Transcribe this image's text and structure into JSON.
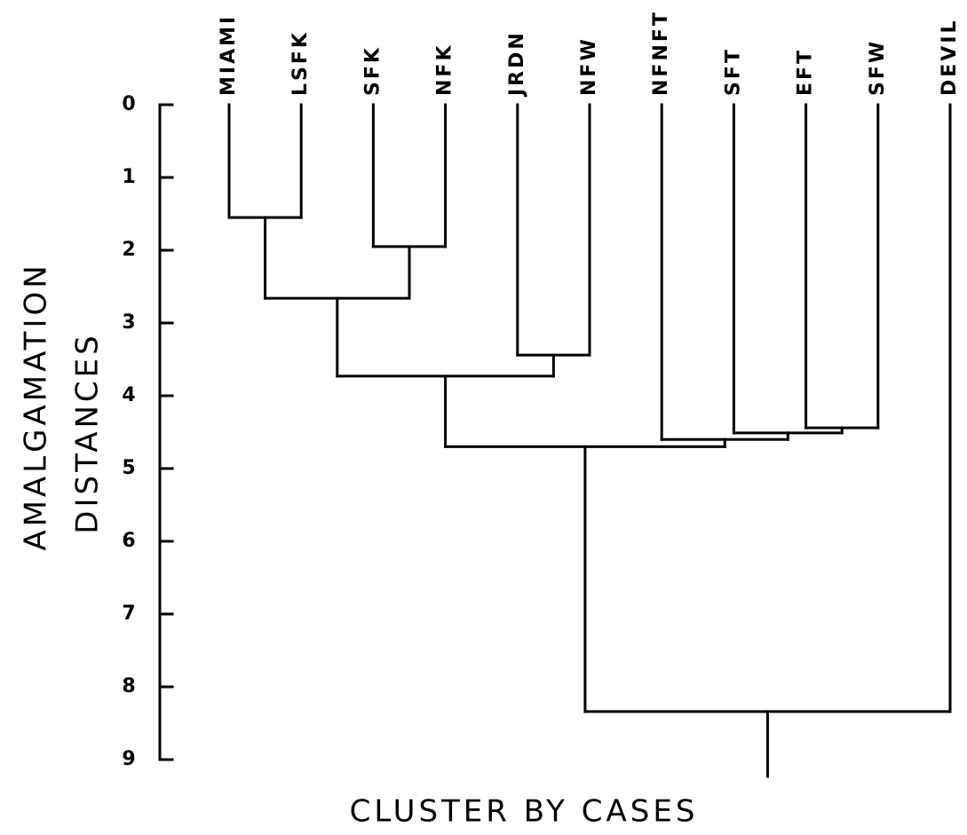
{
  "chart_data": {
    "type": "dendrogram",
    "xlabel": "CLUSTER BY CASES",
    "ylabel": [
      "AMALGAMATION",
      "DISTANCES"
    ],
    "ylim": [
      0,
      9
    ],
    "yticks": [
      0,
      1,
      2,
      3,
      4,
      5,
      6,
      7,
      8,
      9
    ],
    "invert_y": true,
    "color": "#000000",
    "tree": {
      "height": 8.34,
      "children": [
        {
          "height": 4.7,
          "children": [
            {
              "height": 3.73,
              "children": [
                {
                  "height": 2.66,
                  "children": [
                    {
                      "height": 1.55,
                      "children": [
                        {
                          "label": "MIAMI"
                        },
                        {
                          "label": "LSFK"
                        }
                      ]
                    },
                    {
                      "height": 1.95,
                      "children": [
                        {
                          "label": "SFK"
                        },
                        {
                          "label": "NFK"
                        }
                      ]
                    }
                  ]
                },
                {
                  "height": 3.44,
                  "children": [
                    {
                      "label": "JRDN"
                    },
                    {
                      "label": "NFW"
                    }
                  ]
                }
              ]
            },
            {
              "height": 4.6,
              "children": [
                {
                  "label": "NFNFT"
                },
                {
                  "height": 4.51,
                  "children": [
                    {
                      "label": "SFT"
                    },
                    {
                      "height": 4.44,
                      "children": [
                        {
                          "label": "EFT"
                        },
                        {
                          "label": "SFW"
                        }
                      ]
                    }
                  ]
                }
              ]
            }
          ]
        },
        {
          "label": "DEVIL"
        }
      ]
    }
  }
}
